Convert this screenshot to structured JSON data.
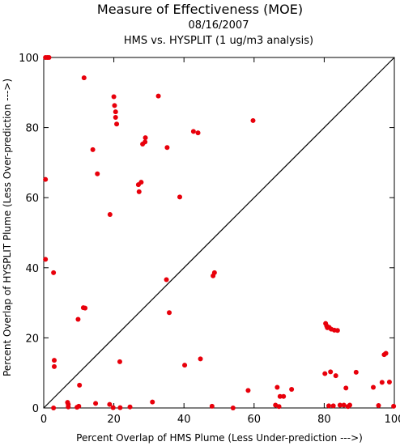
{
  "chart_data": {
    "type": "scatter",
    "title": "Measure of Effectiveness (MOE)",
    "subtitle_date": "08/16/2007",
    "subtitle_analysis": "HMS vs. HYSPLIT  (1 ug/m3 analysis)",
    "xlabel": "Percent Overlap of HMS Plume (Less Under-prediction --->)",
    "ylabel": "Percent Overlap of HYSPLIT Plume (Less Over-prediction --->)",
    "xlim": [
      0,
      100
    ],
    "ylim": [
      0,
      100
    ],
    "xticks": [
      0,
      20,
      40,
      60,
      80,
      100
    ],
    "yticks": [
      0,
      20,
      40,
      60,
      80,
      100
    ],
    "reference_line": "y = x",
    "grid": false,
    "marker_color": "#e8000b",
    "points": [
      [
        0.5,
        100
      ],
      [
        1,
        100
      ],
      [
        1.5,
        100
      ],
      [
        0.5,
        65.2
      ],
      [
        0.5,
        42.4
      ],
      [
        2.8,
        38.6
      ],
      [
        3,
        13.6
      ],
      [
        3,
        11.8
      ],
      [
        2.8,
        0
      ],
      [
        6.8,
        1.6
      ],
      [
        7,
        1.0
      ],
      [
        7,
        0.3
      ],
      [
        9.5,
        0.2
      ],
      [
        10,
        0.5
      ],
      [
        9.8,
        25.3
      ],
      [
        10.2,
        6.5
      ],
      [
        11.3,
        28.6
      ],
      [
        11.8,
        28.5
      ],
      [
        11.5,
        94.2
      ],
      [
        14,
        73.7
      ],
      [
        15.3,
        66.8
      ],
      [
        14.8,
        1.3
      ],
      [
        18.9,
        55.2
      ],
      [
        18.8,
        1.0
      ],
      [
        19.8,
        0.1
      ],
      [
        20,
        88.8
      ],
      [
        20.2,
        86.3
      ],
      [
        20.5,
        84.5
      ],
      [
        20.5,
        82.9
      ],
      [
        20.8,
        81
      ],
      [
        21.7,
        13.2
      ],
      [
        21.8,
        0.1
      ],
      [
        24.6,
        0.3
      ],
      [
        27,
        63.7
      ],
      [
        27.2,
        61.7
      ],
      [
        27.8,
        64.4
      ],
      [
        28.2,
        75.3
      ],
      [
        28.9,
        75.9
      ],
      [
        29,
        77.1
      ],
      [
        31,
        1.7
      ],
      [
        32.7,
        89
      ],
      [
        35,
        36.6
      ],
      [
        35.2,
        74.3
      ],
      [
        35.8,
        27.2
      ],
      [
        38.8,
        60.2
      ],
      [
        40.2,
        12.2
      ],
      [
        42.7,
        78.9
      ],
      [
        44,
        78.5
      ],
      [
        44.7,
        14
      ],
      [
        48,
        0.5
      ],
      [
        48.3,
        37.7
      ],
      [
        48.7,
        38.6
      ],
      [
        54,
        0
      ],
      [
        58.3,
        5
      ],
      [
        59.7,
        82
      ],
      [
        66.1,
        0.8
      ],
      [
        66.6,
        5.9
      ],
      [
        67.1,
        0.4
      ],
      [
        67.4,
        3.3
      ],
      [
        68.4,
        3.3
      ],
      [
        70.7,
        5.3
      ],
      [
        80.2,
        9.8
      ],
      [
        80.4,
        24.1
      ],
      [
        80.7,
        23.4
      ],
      [
        80.9,
        22.9
      ],
      [
        81.4,
        23
      ],
      [
        82,
        22.5
      ],
      [
        81.3,
        0.6
      ],
      [
        81.8,
        10.3
      ],
      [
        82.9,
        22.2
      ],
      [
        83.8,
        22.1
      ],
      [
        82.6,
        0.6
      ],
      [
        83.3,
        9.2
      ],
      [
        84.5,
        0.8
      ],
      [
        85.6,
        0.8
      ],
      [
        86.2,
        5.7
      ],
      [
        86.8,
        0.4
      ],
      [
        87.3,
        0.8
      ],
      [
        89.1,
        10.2
      ],
      [
        94,
        5.9
      ],
      [
        95.5,
        0.7
      ],
      [
        96.5,
        7.3
      ],
      [
        97.1,
        15.2
      ],
      [
        97.6,
        15.6
      ],
      [
        98.6,
        7.4
      ],
      [
        99.8,
        0.5
      ]
    ]
  }
}
